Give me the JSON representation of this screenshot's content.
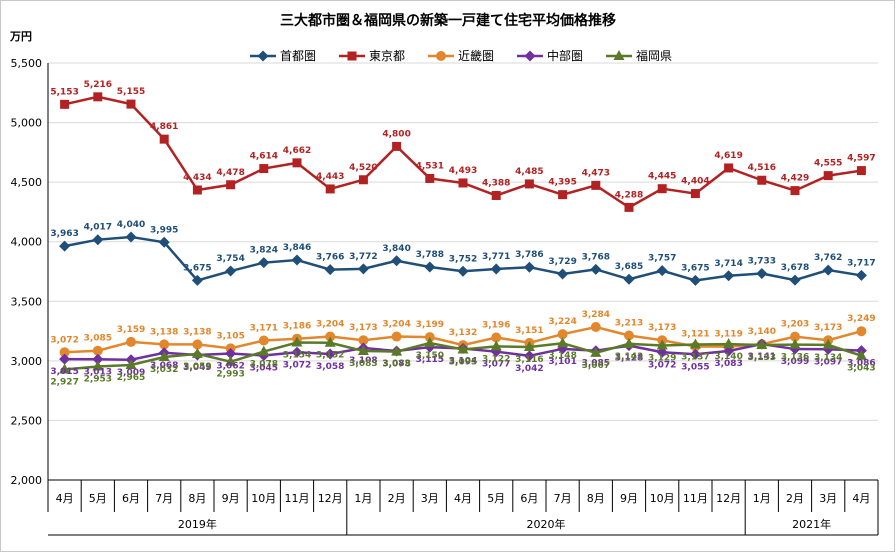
{
  "chart_data": {
    "type": "line",
    "title": "三大都市圏＆福岡県の新築一戸建て住宅平均価格推移",
    "ylabel": "万円",
    "ylim": [
      2000,
      5500
    ],
    "yticks": [
      "2,000",
      "2,500",
      "3,000",
      "3,500",
      "4,000",
      "4,500",
      "5,000",
      "5,500"
    ],
    "categories": [
      "4月",
      "5月",
      "6月",
      "7月",
      "8月",
      "9月",
      "10月",
      "11月",
      "12月",
      "1月",
      "2月",
      "3月",
      "4月",
      "5月",
      "6月",
      "7月",
      "8月",
      "9月",
      "10月",
      "11月",
      "12月",
      "1月",
      "2月",
      "3月",
      "4月"
    ],
    "years": [
      {
        "label": "2019年",
        "start": 0,
        "end": 8
      },
      {
        "label": "2020年",
        "start": 9,
        "end": 20
      },
      {
        "label": "2021年",
        "start": 21,
        "end": 24
      }
    ],
    "grid": true,
    "legend_position": "top",
    "series": [
      {
        "name": "首都圏",
        "color": "#1f4e79",
        "marker": "diamond",
        "label_pos": "above",
        "values": [
          3963,
          4017,
          4040,
          3995,
          3675,
          3754,
          3824,
          3846,
          3766,
          3772,
          3840,
          3788,
          3752,
          3771,
          3786,
          3729,
          3768,
          3685,
          3757,
          3675,
          3714,
          3733,
          3678,
          3762,
          3717
        ]
      },
      {
        "name": "東京都",
        "color": "#b22222",
        "marker": "square",
        "label_pos": "above",
        "values": [
          5153,
          5216,
          5155,
          4861,
          4434,
          4478,
          4614,
          4662,
          4443,
          4520,
          4800,
          4531,
          4493,
          4388,
          4485,
          4395,
          4473,
          4288,
          4445,
          4404,
          4619,
          4516,
          4429,
          4555,
          4597
        ]
      },
      {
        "name": "近畿圏",
        "color": "#e3872d",
        "marker": "circle",
        "label_pos": "above",
        "values": [
          3072,
          3085,
          3159,
          3138,
          3138,
          3105,
          3171,
          3186,
          3204,
          3173,
          3204,
          3199,
          3132,
          3196,
          3151,
          3224,
          3284,
          3213,
          3173,
          3121,
          3119,
          3140,
          3203,
          3173,
          3249
        ]
      },
      {
        "name": "中部圏",
        "color": "#7030a0",
        "marker": "diamond",
        "label_pos": "below",
        "values": [
          3015,
          3013,
          3009,
          3068,
          3049,
          3062,
          3045,
          3072,
          3058,
          3108,
          3083,
          3115,
          3104,
          3077,
          3042,
          3101,
          3085,
          3128,
          3072,
          3055,
          3083,
          3141,
          3099,
          3097,
          3086
        ]
      },
      {
        "name": "福岡県",
        "color": "#5a7a28",
        "marker": "triangle",
        "label_pos": "below",
        "values": [
          2927,
          2953,
          2965,
          3032,
          3059,
          2993,
          3078,
          3154,
          3152,
          3083,
          3078,
          3150,
          3095,
          3122,
          3116,
          3148,
          3067,
          3143,
          3129,
          3137,
          3140,
          3133,
          3136,
          3134,
          3043
        ]
      }
    ]
  }
}
